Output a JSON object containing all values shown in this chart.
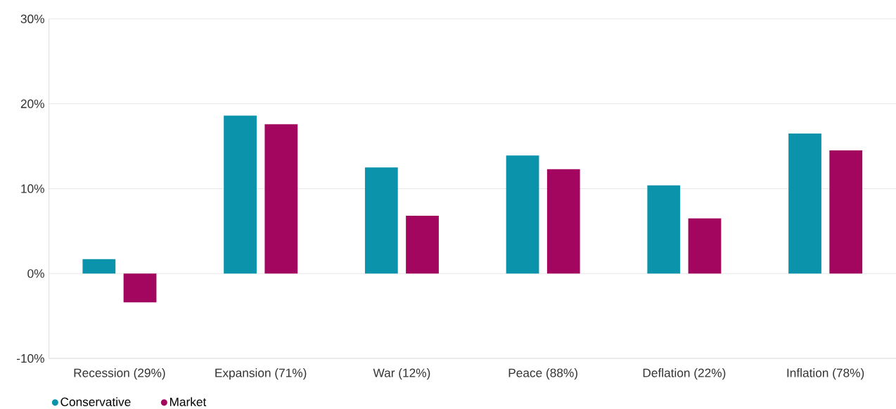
{
  "chart_data": {
    "type": "bar",
    "categories": [
      "Recession (29%)",
      "Expansion (71%)",
      "War (12%)",
      "Peace (88%)",
      "Deflation (22%)",
      "Inflation (78%)"
    ],
    "series": [
      {
        "name": "Conservative",
        "color": "#0a93ab",
        "values": [
          1.7,
          18.6,
          12.5,
          13.9,
          10.4,
          16.5
        ]
      },
      {
        "name": "Market",
        "color": "#a2065f",
        "values": [
          -3.4,
          17.6,
          6.8,
          12.3,
          6.5,
          14.5
        ]
      }
    ],
    "ylim": [
      -10,
      30
    ],
    "yticks": [
      {
        "value": -10,
        "label": "-10%"
      },
      {
        "value": 0,
        "label": "0%"
      },
      {
        "value": 10,
        "label": "10%"
      },
      {
        "value": 20,
        "label": "20%"
      },
      {
        "value": 30,
        "label": "30%"
      }
    ],
    "grid": "y",
    "legend": "bottom left"
  }
}
